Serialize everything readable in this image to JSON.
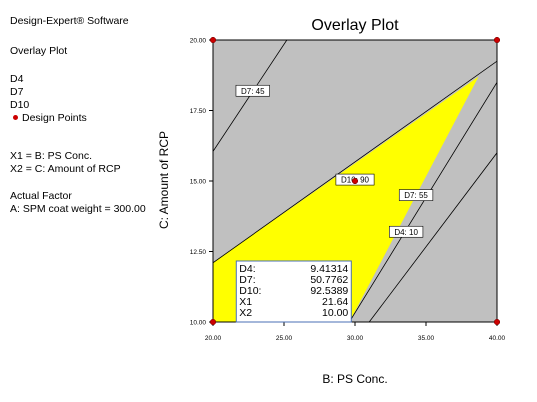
{
  "sidebar": {
    "software": "Design-Expert® Software",
    "plot_type": "Overlay Plot",
    "responses": [
      "D4",
      "D7",
      "D10"
    ],
    "design_points": "Design Points",
    "x1": "X1 = B: PS Conc.",
    "x2": "X2 = C: Amount of RCP",
    "actual_factor_heading": "Actual Factor",
    "actual_factor_value": "A: SPM coat weight = 300.00"
  },
  "colors": {
    "feasible_region": "#ffff00",
    "infeasible_region": "#c0c0c0",
    "design_point": "#cc0000",
    "contour": "#000000"
  },
  "chart_data": {
    "type": "overlay contour plot",
    "title": "Overlay Plot",
    "xlabel": "B: PS Conc.",
    "ylabel": "C: Amount of RCP",
    "xlim": [
      20,
      40
    ],
    "ylim": [
      10,
      20
    ],
    "x_ticks": [
      "20.00",
      "25.00",
      "30.00",
      "35.00",
      "40.00"
    ],
    "y_ticks": [
      "10.00",
      "12.50",
      "15.00",
      "17.50",
      "20.00"
    ],
    "feasible_region": [
      [
        20,
        10
      ],
      [
        20,
        12.1
      ],
      [
        38.7,
        18.7
      ],
      [
        29.6,
        10
      ]
    ],
    "contours": [
      {
        "label": "D7: 45",
        "points": [
          [
            20,
            16.05
          ],
          [
            25.2,
            20
          ]
        ],
        "label_at": [
          22.8,
          18.2
        ]
      },
      {
        "label": "D10: 90",
        "points": [
          [
            20,
            12.1
          ],
          [
            40,
            19.25
          ]
        ],
        "label_at": [
          30,
          15.05
        ]
      },
      {
        "label": "D7: 55",
        "points": [
          [
            29.6,
            10
          ],
          [
            40,
            18.5
          ]
        ],
        "label_at": [
          34.3,
          14.5
        ]
      },
      {
        "label": "D4: 10",
        "points": [
          [
            31,
            10
          ],
          [
            40,
            16
          ]
        ],
        "label_at": [
          33.6,
          13.2
        ]
      }
    ],
    "design_points": [
      [
        20,
        10
      ],
      [
        20,
        20
      ],
      [
        40,
        10
      ],
      [
        40,
        20
      ],
      [
        30,
        15
      ]
    ],
    "tooltip": {
      "rows": [
        {
          "label": "D4:",
          "value": "9.41314"
        },
        {
          "label": "D7:",
          "value": "50.7762"
        },
        {
          "label": "D10:",
          "value": "92.5389"
        },
        {
          "label": "X1",
          "value": "21.64"
        },
        {
          "label": "X2",
          "value": "10.00"
        }
      ],
      "x": 21.64,
      "y": 10.0
    }
  }
}
